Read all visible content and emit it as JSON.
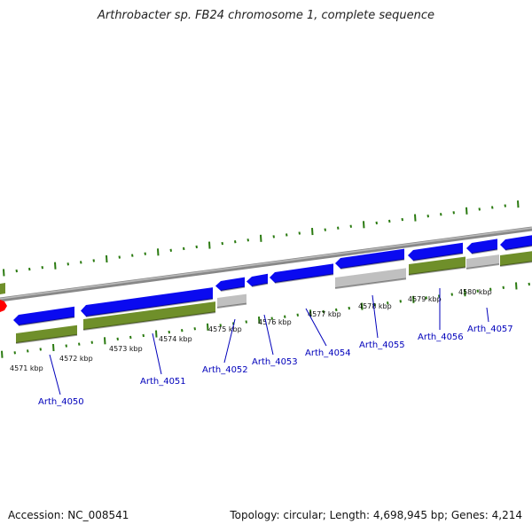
{
  "title": "Arthrobacter sp. FB24 chromosome 1, complete sequence",
  "footer": {
    "accession": "Accession: NC_008541",
    "summary": "Topology: circular; Length: 4,698,945 bp; Genes: 4,214"
  },
  "colors": {
    "gene_forward": "#0a0af0",
    "cds": "#6f8f2a",
    "other": "#c0c0c0",
    "ticks": "#2a7a10",
    "backbone": "#888888",
    "highlight": "#ff0000"
  },
  "kbp_ticks": [
    "4571 kbp",
    "4572 kbp",
    "4573 kbp",
    "4574 kbp",
    "4575 kbp",
    "4576 kbp",
    "4577 kbp",
    "4578 kbp",
    "4579 kbp",
    "4580 kbp"
  ],
  "genes": [
    "Arth_4050",
    "Arth_4051",
    "Arth_4052",
    "Arth_4053",
    "Arth_4054",
    "Arth_4055",
    "Arth_4056",
    "Arth_4057"
  ]
}
